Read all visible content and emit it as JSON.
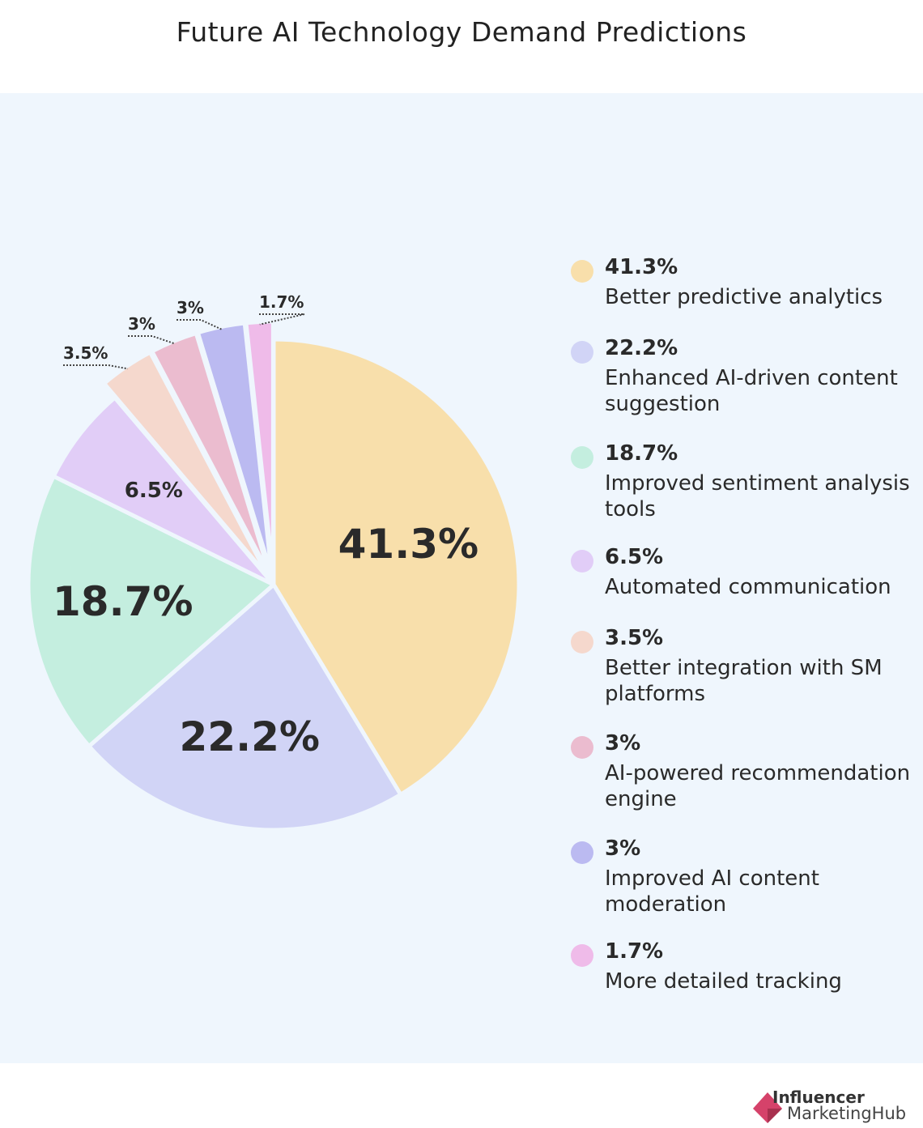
{
  "chart_data": {
    "type": "pie",
    "title": "Future AI Technology Demand Predictions",
    "slices": [
      {
        "label": "Better predictive analytics",
        "value": 41.3,
        "display": "41.3%",
        "color": "#f8dfab"
      },
      {
        "label": "Enhanced AI-driven content suggestion",
        "value": 22.2,
        "display": "22.2%",
        "color": "#d1d4f6"
      },
      {
        "label": "Improved sentiment analysis tools",
        "value": 18.7,
        "display": "18.7%",
        "color": "#c4eedf"
      },
      {
        "label": "Automated communication",
        "value": 6.5,
        "display": "6.5%",
        "color": "#e1cdf7"
      },
      {
        "label": "Better integration with SM platforms",
        "value": 3.5,
        "display": "3.5%",
        "color": "#f5d8cd"
      },
      {
        "label": "AI-powered recommendation engine",
        "value": 3,
        "display": "3%",
        "color": "#ebbccf"
      },
      {
        "label": "Improved AI content moderation",
        "value": 3,
        "display": "3%",
        "color": "#bbbaf1"
      },
      {
        "label": "More detailed tracking",
        "value": 1.7,
        "display": "1.7%",
        "color": "#efbbe9"
      }
    ],
    "start": "12 o'clock",
    "direction": "clockwise",
    "legend_position": "right"
  },
  "logo": {
    "line1": "Influencer",
    "line2": "MarketingHub",
    "color": "#d5426a"
  }
}
